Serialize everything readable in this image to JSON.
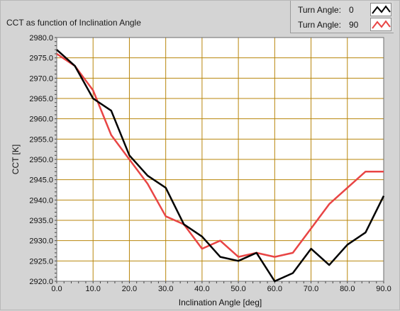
{
  "chart_data": {
    "type": "line",
    "title": "CCT as function of Inclination Angle",
    "xlabel": "Inclination Angle [deg]",
    "ylabel": "CCT [K]",
    "xlim": [
      0,
      90
    ],
    "ylim": [
      2920,
      2980
    ],
    "x_ticks": [
      "0.0",
      "10.0",
      "20.0",
      "30.0",
      "40.0",
      "50.0",
      "60.0",
      "70.0",
      "80.0",
      "90.0"
    ],
    "y_ticks": [
      "2920.0",
      "2925.0",
      "2930.0",
      "2935.0",
      "2940.0",
      "2945.0",
      "2950.0",
      "2955.0",
      "2960.0",
      "2965.0",
      "2970.0",
      "2975.0",
      "2980.0"
    ],
    "grid": true,
    "legend_position": "top-right",
    "x": [
      0,
      5,
      10,
      15,
      20,
      25,
      30,
      35,
      40,
      45,
      50,
      55,
      60,
      65,
      70,
      75,
      80,
      85,
      90
    ],
    "series": [
      {
        "legend_label": "Turn Angle:",
        "legend_value": "0",
        "color": "#000000",
        "values": [
          2977,
          2973,
          2965,
          2962,
          2951,
          2946,
          2943,
          2934,
          2931,
          2926,
          2925,
          2927,
          2920,
          2922,
          2928,
          2924,
          2929,
          2932,
          2941
        ]
      },
      {
        "legend_label": "Turn Angle:",
        "legend_value": "90",
        "color": "#e84545",
        "values": [
          2976,
          2973,
          2967,
          2956,
          2950,
          2944,
          2936,
          2934,
          2928,
          2930,
          2926,
          2927,
          2926,
          2927,
          2933,
          2939,
          2943,
          2947,
          2947
        ]
      }
    ],
    "plot_background": "#ffffff",
    "grid_color": "#b8860b"
  }
}
